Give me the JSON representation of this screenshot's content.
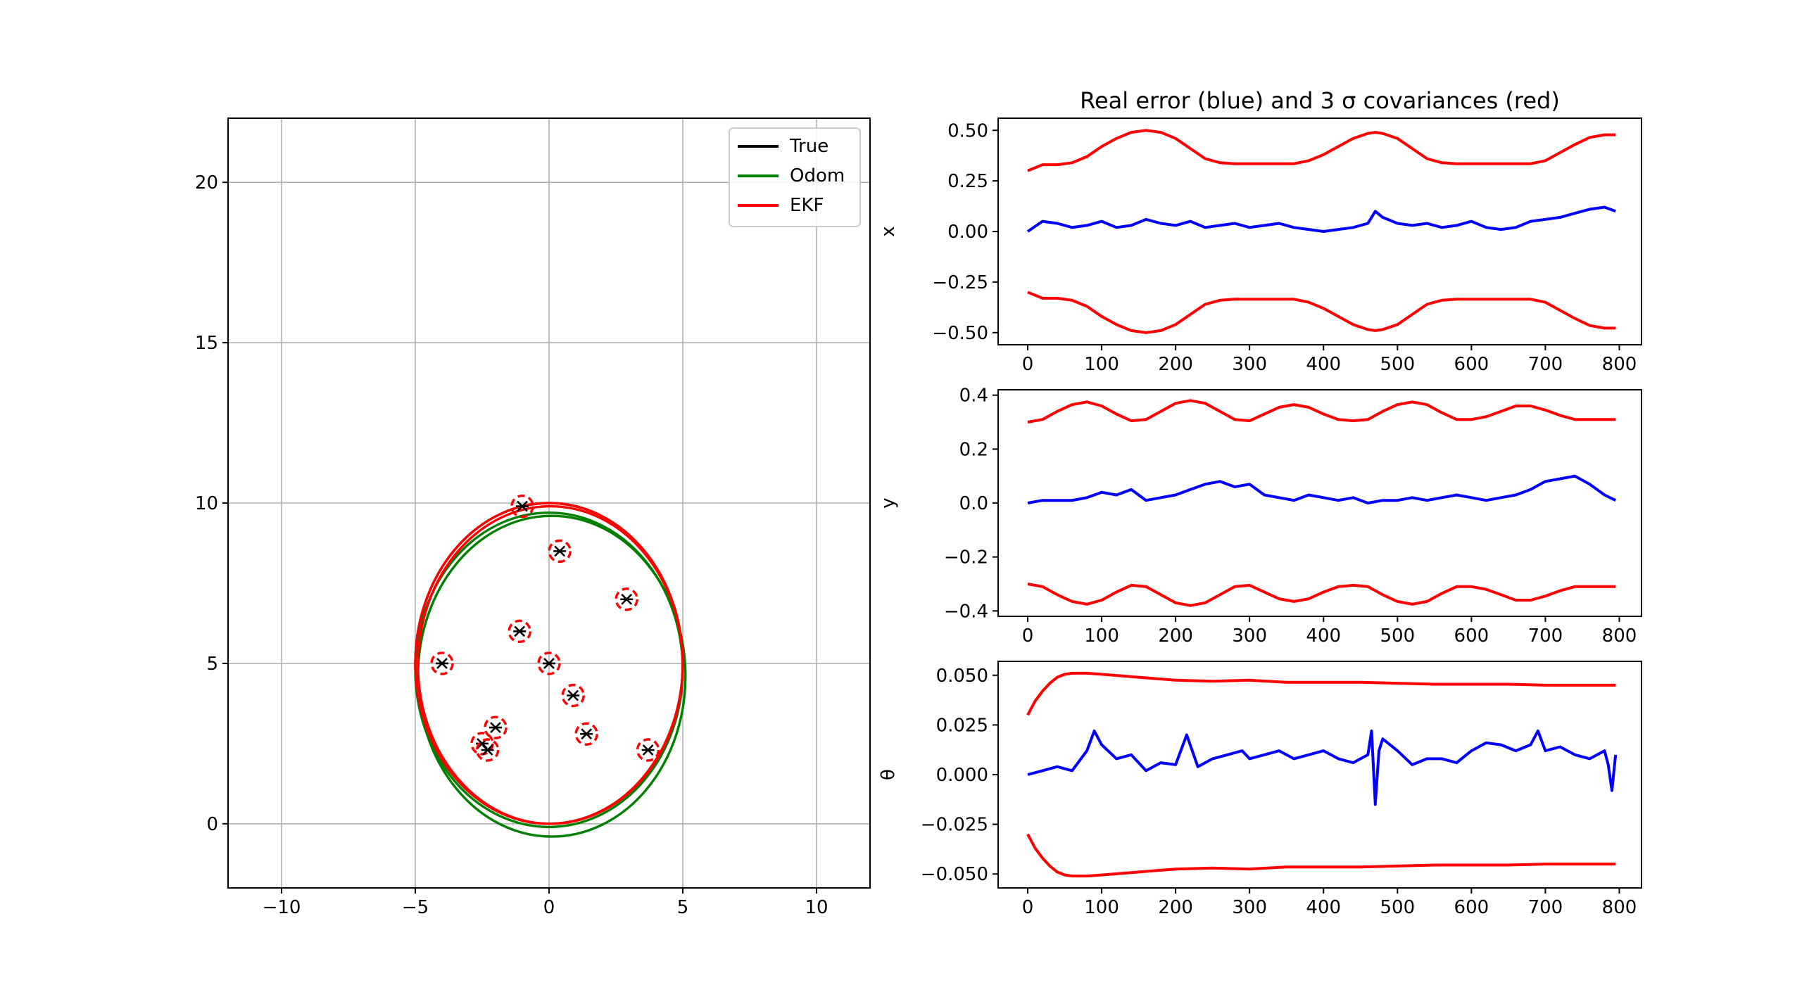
{
  "chart_data": [
    {
      "type": "line",
      "panel": "trajectory",
      "title": "",
      "xlabel": "",
      "ylabel": "",
      "xlim": [
        -12,
        12
      ],
      "ylim": [
        -2,
        22
      ],
      "xticks": [
        -10,
        -5,
        0,
        5,
        10
      ],
      "xtick_labels": [
        "−10",
        "−5",
        "0",
        "5",
        "10"
      ],
      "yticks": [
        0,
        5,
        10,
        15,
        20
      ],
      "ytick_labels": [
        "0",
        "5",
        "10",
        "15",
        "20"
      ],
      "grid": true,
      "legend_position": "top-right",
      "series": [
        {
          "name": "True",
          "color": "#000000"
        },
        {
          "name": "Odom",
          "color": "#008000"
        },
        {
          "name": "EKF",
          "color": "#ff0000"
        }
      ],
      "ellipses": [
        {
          "series": "True",
          "cx": 0.0,
          "cy": 5.0,
          "rx": 5.0,
          "ry": 5.0
        },
        {
          "series": "Odom",
          "cx": 0.1,
          "cy": 4.6,
          "rx": 5.0,
          "ry": 5.0
        },
        {
          "series": "Odom",
          "cx": 0.0,
          "cy": 4.8,
          "rx": 5.0,
          "ry": 4.9
        },
        {
          "series": "EKF",
          "cx": 0.0,
          "cy": 5.0,
          "rx": 5.0,
          "ry": 5.0
        },
        {
          "series": "EKF",
          "cx": 0.05,
          "cy": 4.95,
          "rx": 4.95,
          "ry": 4.95
        }
      ],
      "landmarks": [
        {
          "x": -1.0,
          "y": 9.9
        },
        {
          "x": 0.4,
          "y": 8.5
        },
        {
          "x": 2.9,
          "y": 7.0
        },
        {
          "x": -1.1,
          "y": 6.0
        },
        {
          "x": -4.0,
          "y": 5.0
        },
        {
          "x": 0.0,
          "y": 5.0
        },
        {
          "x": 0.9,
          "y": 4.0
        },
        {
          "x": -2.0,
          "y": 3.0
        },
        {
          "x": -2.5,
          "y": 2.5
        },
        {
          "x": -2.3,
          "y": 2.3
        },
        {
          "x": 1.4,
          "y": 2.8
        },
        {
          "x": 3.7,
          "y": 2.3
        }
      ]
    },
    {
      "type": "line",
      "panel": "x_error",
      "title": "Real error (blue) and 3 σ covariances (red)",
      "xlabel": "",
      "ylabel": "x",
      "xlim": [
        -40,
        830
      ],
      "ylim": [
        -0.56,
        0.56
      ],
      "xticks": [
        0,
        100,
        200,
        300,
        400,
        500,
        600,
        700,
        800
      ],
      "xtick_labels": [
        "0",
        "100",
        "200",
        "300",
        "400",
        "500",
        "600",
        "700",
        "800"
      ],
      "yticks": [
        -0.5,
        -0.25,
        0.0,
        0.25,
        0.5
      ],
      "ytick_labels": [
        "−0.50",
        "−0.25",
        "0.00",
        "0.25",
        "0.50"
      ],
      "grid": false,
      "series": [
        {
          "name": "",
          "color": "#0000ff",
          "x": [
            0,
            20,
            40,
            60,
            80,
            100,
            120,
            140,
            160,
            180,
            200,
            220,
            240,
            260,
            280,
            300,
            320,
            340,
            360,
            380,
            400,
            420,
            440,
            460,
            470,
            480,
            500,
            520,
            540,
            560,
            580,
            600,
            620,
            640,
            660,
            680,
            700,
            720,
            740,
            760,
            780,
            795
          ],
          "y": [
            0.0,
            0.05,
            0.04,
            0.02,
            0.03,
            0.05,
            0.02,
            0.03,
            0.06,
            0.04,
            0.03,
            0.05,
            0.02,
            0.03,
            0.04,
            0.02,
            0.03,
            0.04,
            0.02,
            0.01,
            0.0,
            0.01,
            0.02,
            0.04,
            0.1,
            0.07,
            0.04,
            0.03,
            0.04,
            0.02,
            0.03,
            0.05,
            0.02,
            0.01,
            0.02,
            0.05,
            0.06,
            0.07,
            0.09,
            0.11,
            0.12,
            0.1
          ]
        },
        {
          "name": "",
          "color": "#ff0000",
          "x": [
            0,
            20,
            40,
            60,
            80,
            100,
            120,
            140,
            160,
            180,
            200,
            220,
            240,
            260,
            280,
            300,
            320,
            340,
            360,
            380,
            400,
            420,
            440,
            460,
            470,
            480,
            500,
            520,
            540,
            560,
            580,
            600,
            620,
            640,
            660,
            680,
            700,
            720,
            740,
            760,
            780,
            795
          ],
          "y": [
            0.3,
            0.33,
            0.33,
            0.34,
            0.37,
            0.42,
            0.46,
            0.49,
            0.5,
            0.49,
            0.46,
            0.41,
            0.36,
            0.34,
            0.335,
            0.335,
            0.335,
            0.335,
            0.335,
            0.35,
            0.38,
            0.42,
            0.46,
            0.485,
            0.49,
            0.485,
            0.46,
            0.41,
            0.36,
            0.34,
            0.335,
            0.335,
            0.335,
            0.335,
            0.335,
            0.335,
            0.35,
            0.39,
            0.43,
            0.465,
            0.478,
            0.478
          ]
        },
        {
          "name": "",
          "color": "#ff0000",
          "x": [
            0,
            20,
            40,
            60,
            80,
            100,
            120,
            140,
            160,
            180,
            200,
            220,
            240,
            260,
            280,
            300,
            320,
            340,
            360,
            380,
            400,
            420,
            440,
            460,
            470,
            480,
            500,
            520,
            540,
            560,
            580,
            600,
            620,
            640,
            660,
            680,
            700,
            720,
            740,
            760,
            780,
            795
          ],
          "y": [
            -0.3,
            -0.33,
            -0.33,
            -0.34,
            -0.37,
            -0.42,
            -0.46,
            -0.49,
            -0.5,
            -0.49,
            -0.46,
            -0.41,
            -0.36,
            -0.34,
            -0.335,
            -0.335,
            -0.335,
            -0.335,
            -0.335,
            -0.35,
            -0.38,
            -0.42,
            -0.46,
            -0.485,
            -0.49,
            -0.485,
            -0.46,
            -0.41,
            -0.36,
            -0.34,
            -0.335,
            -0.335,
            -0.335,
            -0.335,
            -0.335,
            -0.335,
            -0.35,
            -0.39,
            -0.43,
            -0.465,
            -0.478,
            -0.478
          ]
        }
      ]
    },
    {
      "type": "line",
      "panel": "y_error",
      "title": "",
      "xlabel": "",
      "ylabel": "y",
      "xlim": [
        -40,
        830
      ],
      "ylim": [
        -0.42,
        0.42
      ],
      "xticks": [
        0,
        100,
        200,
        300,
        400,
        500,
        600,
        700,
        800
      ],
      "xtick_labels": [
        "0",
        "100",
        "200",
        "300",
        "400",
        "500",
        "600",
        "700",
        "800"
      ],
      "yticks": [
        -0.4,
        -0.2,
        0.0,
        0.2,
        0.4
      ],
      "ytick_labels": [
        "−0.4",
        "−0.2",
        "0.0",
        "0.2",
        "0.4"
      ],
      "grid": false,
      "series": [
        {
          "name": "",
          "color": "#0000ff",
          "x": [
            0,
            20,
            40,
            60,
            80,
            100,
            120,
            140,
            160,
            180,
            200,
            220,
            240,
            260,
            280,
            300,
            320,
            340,
            360,
            380,
            400,
            420,
            440,
            460,
            480,
            500,
            520,
            540,
            560,
            580,
            600,
            620,
            640,
            660,
            680,
            700,
            720,
            740,
            760,
            780,
            795
          ],
          "y": [
            0.0,
            0.01,
            0.01,
            0.01,
            0.02,
            0.04,
            0.03,
            0.05,
            0.01,
            0.02,
            0.03,
            0.05,
            0.07,
            0.08,
            0.06,
            0.07,
            0.03,
            0.02,
            0.01,
            0.03,
            0.02,
            0.01,
            0.02,
            0.0,
            0.01,
            0.01,
            0.02,
            0.01,
            0.02,
            0.03,
            0.02,
            0.01,
            0.02,
            0.03,
            0.05,
            0.08,
            0.09,
            0.1,
            0.07,
            0.03,
            0.01
          ]
        },
        {
          "name": "",
          "color": "#ff0000",
          "x": [
            0,
            20,
            40,
            60,
            80,
            100,
            120,
            140,
            160,
            180,
            200,
            220,
            240,
            260,
            280,
            300,
            320,
            340,
            360,
            380,
            400,
            420,
            440,
            460,
            480,
            500,
            520,
            540,
            560,
            580,
            600,
            620,
            640,
            660,
            680,
            700,
            720,
            740,
            760,
            780,
            795
          ],
          "y": [
            0.3,
            0.31,
            0.34,
            0.365,
            0.375,
            0.36,
            0.33,
            0.305,
            0.31,
            0.34,
            0.37,
            0.38,
            0.37,
            0.34,
            0.31,
            0.305,
            0.33,
            0.355,
            0.365,
            0.355,
            0.33,
            0.31,
            0.305,
            0.31,
            0.34,
            0.365,
            0.375,
            0.365,
            0.335,
            0.31,
            0.31,
            0.32,
            0.34,
            0.36,
            0.36,
            0.345,
            0.325,
            0.31,
            0.31,
            0.31,
            0.31
          ]
        },
        {
          "name": "",
          "color": "#ff0000",
          "x": [
            0,
            20,
            40,
            60,
            80,
            100,
            120,
            140,
            160,
            180,
            200,
            220,
            240,
            260,
            280,
            300,
            320,
            340,
            360,
            380,
            400,
            420,
            440,
            460,
            480,
            500,
            520,
            540,
            560,
            580,
            600,
            620,
            640,
            660,
            680,
            700,
            720,
            740,
            760,
            780,
            795
          ],
          "y": [
            -0.3,
            -0.31,
            -0.34,
            -0.365,
            -0.375,
            -0.36,
            -0.33,
            -0.305,
            -0.31,
            -0.34,
            -0.37,
            -0.38,
            -0.37,
            -0.34,
            -0.31,
            -0.305,
            -0.33,
            -0.355,
            -0.365,
            -0.355,
            -0.33,
            -0.31,
            -0.305,
            -0.31,
            -0.34,
            -0.365,
            -0.375,
            -0.365,
            -0.335,
            -0.31,
            -0.31,
            -0.32,
            -0.34,
            -0.36,
            -0.36,
            -0.345,
            -0.325,
            -0.31,
            -0.31,
            -0.31,
            -0.31
          ]
        }
      ]
    },
    {
      "type": "line",
      "panel": "theta_error",
      "title": "",
      "xlabel": "",
      "ylabel": "θ",
      "xlim": [
        -40,
        830
      ],
      "ylim": [
        -0.057,
        0.057
      ],
      "xticks": [
        0,
        100,
        200,
        300,
        400,
        500,
        600,
        700,
        800
      ],
      "xtick_labels": [
        "0",
        "100",
        "200",
        "300",
        "400",
        "500",
        "600",
        "700",
        "800"
      ],
      "yticks": [
        -0.05,
        -0.025,
        0.0,
        0.025,
        0.05
      ],
      "ytick_labels": [
        "−0.050",
        "−0.025",
        "0.000",
        "0.025",
        "0.050"
      ],
      "grid": false,
      "series": [
        {
          "name": "",
          "color": "#0000ff",
          "x": [
            0,
            20,
            40,
            60,
            80,
            90,
            100,
            120,
            140,
            160,
            180,
            200,
            215,
            230,
            250,
            270,
            290,
            300,
            320,
            340,
            360,
            380,
            400,
            420,
            440,
            460,
            465,
            470,
            475,
            480,
            500,
            520,
            540,
            560,
            580,
            600,
            620,
            640,
            660,
            680,
            690,
            700,
            720,
            740,
            760,
            780,
            785,
            790,
            795
          ],
          "y": [
            0.0,
            0.002,
            0.004,
            0.002,
            0.012,
            0.022,
            0.015,
            0.008,
            0.01,
            0.002,
            0.006,
            0.005,
            0.02,
            0.004,
            0.008,
            0.01,
            0.012,
            0.008,
            0.01,
            0.012,
            0.008,
            0.01,
            0.012,
            0.008,
            0.006,
            0.01,
            0.022,
            -0.015,
            0.012,
            0.018,
            0.012,
            0.005,
            0.008,
            0.008,
            0.006,
            0.012,
            0.016,
            0.015,
            0.012,
            0.015,
            0.022,
            0.012,
            0.014,
            0.01,
            0.008,
            0.012,
            0.005,
            -0.008,
            0.01
          ]
        },
        {
          "name": "",
          "color": "#ff0000",
          "x": [
            0,
            10,
            20,
            30,
            40,
            50,
            60,
            80,
            100,
            150,
            200,
            250,
            300,
            350,
            400,
            450,
            500,
            550,
            600,
            650,
            700,
            750,
            795
          ],
          "y": [
            0.03,
            0.037,
            0.042,
            0.046,
            0.049,
            0.0505,
            0.051,
            0.051,
            0.0505,
            0.049,
            0.0475,
            0.047,
            0.0475,
            0.0465,
            0.0465,
            0.0465,
            0.046,
            0.0455,
            0.0455,
            0.0455,
            0.045,
            0.045,
            0.045
          ]
        },
        {
          "name": "",
          "color": "#ff0000",
          "x": [
            0,
            10,
            20,
            30,
            40,
            50,
            60,
            80,
            100,
            150,
            200,
            250,
            300,
            350,
            400,
            450,
            500,
            550,
            600,
            650,
            700,
            750,
            795
          ],
          "y": [
            -0.03,
            -0.037,
            -0.042,
            -0.046,
            -0.049,
            -0.0505,
            -0.051,
            -0.051,
            -0.0505,
            -0.049,
            -0.0475,
            -0.047,
            -0.0475,
            -0.0465,
            -0.0465,
            -0.0465,
            -0.046,
            -0.0455,
            -0.0455,
            -0.0455,
            -0.045,
            -0.045,
            -0.045
          ]
        }
      ]
    }
  ]
}
